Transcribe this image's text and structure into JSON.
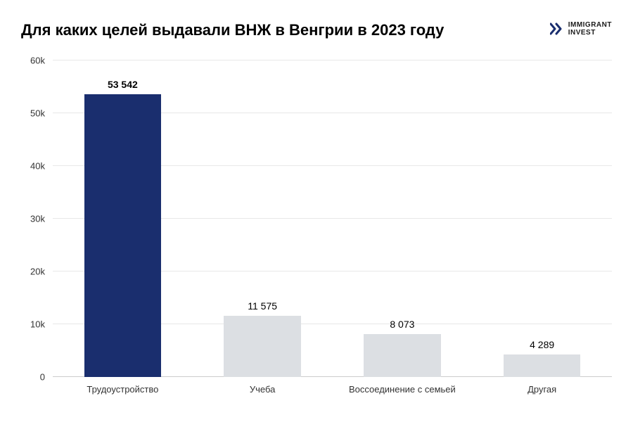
{
  "chart": {
    "type": "bar",
    "title": "Для каких целей выдавали ВНЖ в Венгрии в 2023 году",
    "logo": {
      "line1": "IMMIGRANT",
      "line2": "INVEST",
      "icon_color": "#1a2e6e"
    },
    "background_color": "#ffffff",
    "grid_color": "#e8e8e8",
    "baseline_color": "#cccccc",
    "title_fontsize": 22,
    "label_fontsize": 13,
    "value_label_fontsize": 14,
    "y_axis": {
      "min": 0,
      "max": 60000,
      "ticks": [
        {
          "value": 0,
          "label": "0"
        },
        {
          "value": 10000,
          "label": "10k"
        },
        {
          "value": 20000,
          "label": "20k"
        },
        {
          "value": 30000,
          "label": "30k"
        },
        {
          "value": 40000,
          "label": "40k"
        },
        {
          "value": 50000,
          "label": "50k"
        },
        {
          "value": 60000,
          "label": "60k"
        }
      ]
    },
    "bars": [
      {
        "category": "Трудоустройство",
        "value": 53542,
        "display_value": "53 542",
        "color": "#1a2e6e",
        "label_bold": true
      },
      {
        "category": "Учеба",
        "value": 11575,
        "display_value": "11 575",
        "color": "#dcdfe3",
        "label_bold": false
      },
      {
        "category": "Воссоединение с семьей",
        "value": 8073,
        "display_value": "8 073",
        "color": "#dcdfe3",
        "label_bold": false
      },
      {
        "category": "Другая",
        "value": 4289,
        "display_value": "4 289",
        "color": "#dcdfe3",
        "label_bold": false
      }
    ]
  }
}
